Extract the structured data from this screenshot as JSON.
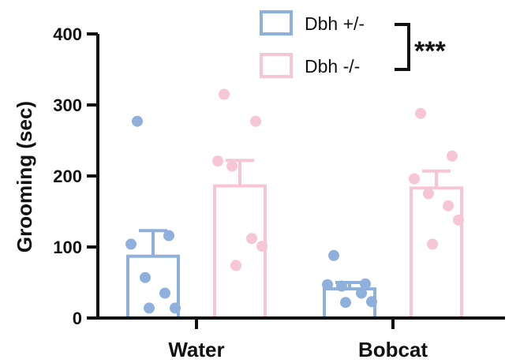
{
  "chart_data": {
    "type": "bar",
    "ylabel": "Grooming (sec)",
    "xlabel": "",
    "ylim": [
      0,
      400
    ],
    "yticks": [
      "0",
      "100",
      "200",
      "300",
      "400"
    ],
    "categories": [
      "Water",
      "Bobcat"
    ],
    "series": [
      {
        "name": "Dbh +/-",
        "color": "#8fb0dd",
        "values": [
          87,
          41
        ],
        "errors": [
          36,
          9
        ],
        "points": [
          [
            277,
            116,
            104,
            57,
            35,
            14,
            14
          ],
          [
            88,
            48,
            47,
            45,
            35,
            23,
            22
          ]
        ]
      },
      {
        "name": "Dbh -/-",
        "color": "#f7c6d4",
        "values": [
          186,
          183
        ],
        "errors": [
          36,
          24
        ],
        "points": [
          [
            315,
            277,
            221,
            214,
            112,
            101,
            74
          ],
          [
            288,
            228,
            196,
            175,
            158,
            138,
            104
          ]
        ]
      }
    ],
    "legend_position": "top-right",
    "annotations": [
      {
        "text": "***",
        "type": "significance-bracket"
      }
    ],
    "grid": false
  }
}
